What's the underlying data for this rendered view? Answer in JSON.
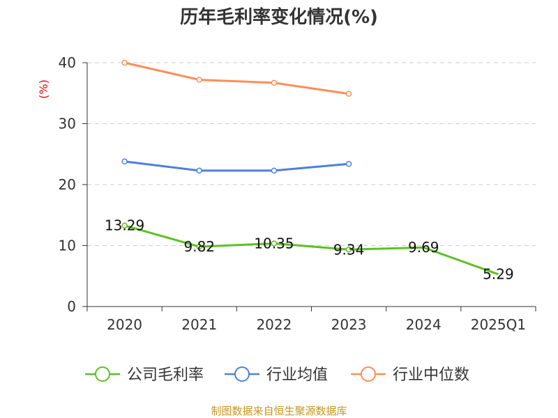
{
  "chart_data": {
    "type": "line",
    "title": "历年毛利率变化情况(%)",
    "ylabel": "(%)",
    "xlabel": "",
    "ylim": [
      0,
      40
    ],
    "yticks": [
      0,
      10,
      20,
      30,
      40
    ],
    "grid": true,
    "categories": [
      "2020",
      "2021",
      "2022",
      "2023",
      "2024",
      "2025Q1"
    ],
    "series": [
      {
        "name": "公司毛利率",
        "color": "#5bc21f",
        "values": [
          13.29,
          9.82,
          10.35,
          9.34,
          9.69,
          5.29
        ],
        "labels": [
          "13.29",
          "9.82",
          "10.35",
          "9.34",
          "9.69",
          "5.29"
        ]
      },
      {
        "name": "行业均值",
        "color": "#4a80e3",
        "values": [
          23.8,
          22.3,
          22.3,
          23.4,
          null,
          null
        ]
      },
      {
        "name": "行业中位数",
        "color": "#ff8c55",
        "values": [
          40.0,
          37.2,
          36.7,
          34.9,
          null,
          null
        ]
      }
    ],
    "legend_position": "bottom",
    "source": "制图数据来自恒生聚源数据库"
  }
}
